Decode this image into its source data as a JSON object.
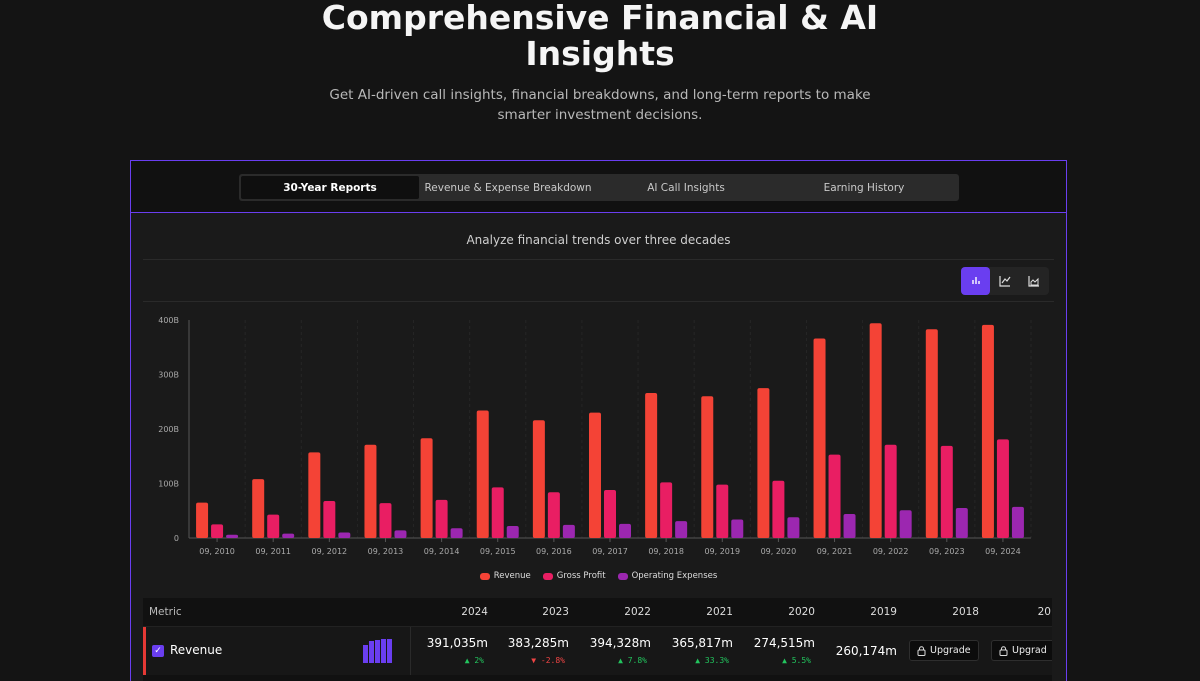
{
  "hero": {
    "title_line1": "Comprehensive Financial & AI",
    "title_line2": "Insights",
    "subtitle_line1": "Get AI-driven call insights, financial breakdowns, and long-term reports to make",
    "subtitle_line2": "smarter investment decisions."
  },
  "tabs": [
    "30-Year Reports",
    "Revenue & Expense Breakdown",
    "AI Call Insights",
    "Earning History"
  ],
  "active_tab": 0,
  "caption": "Analyze financial trends over three decades",
  "chart_type_buttons": [
    "bar-chart-icon",
    "line-chart-icon",
    "area-chart-icon"
  ],
  "colors": {
    "revenue": "#f44336",
    "gross_profit": "#e91e63",
    "operating_expenses": "#9c27b0",
    "accent": "#6a3ef0"
  },
  "chart_data": {
    "type": "bar",
    "categories": [
      "09, 2010",
      "09, 2011",
      "09, 2012",
      "09, 2013",
      "09, 2014",
      "09, 2015",
      "09, 2016",
      "09, 2017",
      "09, 2018",
      "09, 2019",
      "09, 2020",
      "09, 2021",
      "09, 2022",
      "09, 2023",
      "09, 2024"
    ],
    "series": [
      {
        "name": "Revenue",
        "values": [
          65,
          108,
          157,
          171,
          183,
          234,
          216,
          230,
          266,
          260,
          275,
          366,
          394,
          383,
          391
        ]
      },
      {
        "name": "Gross Profit",
        "values": [
          25,
          43,
          68,
          64,
          70,
          93,
          84,
          88,
          102,
          98,
          105,
          153,
          171,
          169,
          181
        ]
      },
      {
        "name": "Operating Expenses",
        "values": [
          6,
          8,
          10,
          14,
          18,
          22,
          24,
          26,
          31,
          34,
          38,
          44,
          51,
          55,
          57
        ]
      }
    ],
    "yticks": [
      "0",
      "100B",
      "200B",
      "300B",
      "400B"
    ],
    "ytick_values": [
      0,
      100,
      200,
      300,
      400
    ],
    "ylim": [
      0,
      400
    ],
    "legend_position": "bottom"
  },
  "table": {
    "metric_header": "Metric",
    "years": [
      "2024",
      "2023",
      "2022",
      "2021",
      "2020",
      "2019",
      "2018",
      "20"
    ],
    "rows": [
      {
        "name": "Revenue",
        "spark": [
          30,
          36,
          38,
          40,
          40
        ],
        "values": [
          "391,035m",
          "383,285m",
          "394,328m",
          "365,817m",
          "274,515m",
          "260,174m"
        ],
        "changes": [
          {
            "text": "▲ 2%",
            "dir": "up"
          },
          {
            "text": "▼ -2.8%",
            "dir": "down"
          },
          {
            "text": "▲ 7.8%",
            "dir": "up"
          },
          {
            "text": "▲ 33.3%",
            "dir": "up"
          },
          {
            "text": "▲ 5.5%",
            "dir": "up"
          },
          {
            "text": "",
            "dir": ""
          }
        ],
        "upgrade_label": "Upgrade",
        "upgrade_label_2": "Upgrad"
      }
    ]
  }
}
